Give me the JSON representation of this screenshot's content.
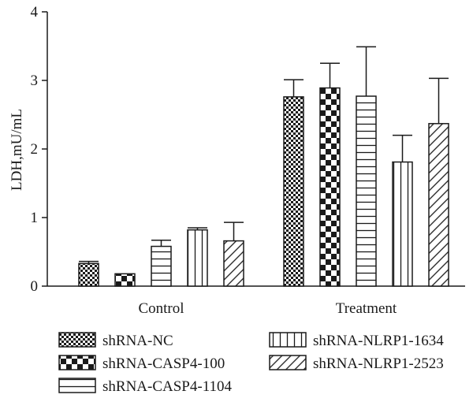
{
  "chart_data": {
    "type": "bar",
    "ylabel": "LDH,mU/mL",
    "xlabel": "",
    "ylim": [
      0,
      4
    ],
    "yticks": [
      "0",
      "1",
      "2",
      "3",
      "4"
    ],
    "categories": [
      "Control",
      "Treatment"
    ],
    "series": [
      {
        "name": "shRNA-NC",
        "pattern": "small-checker",
        "values": [
          0.33,
          2.76
        ],
        "errors": [
          0.03,
          0.25
        ]
      },
      {
        "name": "shRNA-CASP4-100",
        "pattern": "large-checker",
        "values": [
          0.18,
          2.89
        ],
        "errors": [
          0.0,
          0.36
        ]
      },
      {
        "name": "shRNA-CASP4-1104",
        "pattern": "horizontal-lines",
        "values": [
          0.58,
          2.77
        ],
        "errors": [
          0.09,
          0.72
        ]
      },
      {
        "name": "shRNA-NLRP1-1634",
        "pattern": "vertical-lines",
        "values": [
          0.82,
          1.81
        ],
        "errors": [
          0.03,
          0.39
        ]
      },
      {
        "name": "shRNA-NLRP1-2523",
        "pattern": "diagonal-lines",
        "values": [
          0.66,
          2.37
        ],
        "errors": [
          0.27,
          0.66
        ]
      }
    ],
    "legend_position": "bottom",
    "grid": false
  },
  "colors": {
    "ink": "#1a1a1a",
    "background": "#ffffff"
  }
}
